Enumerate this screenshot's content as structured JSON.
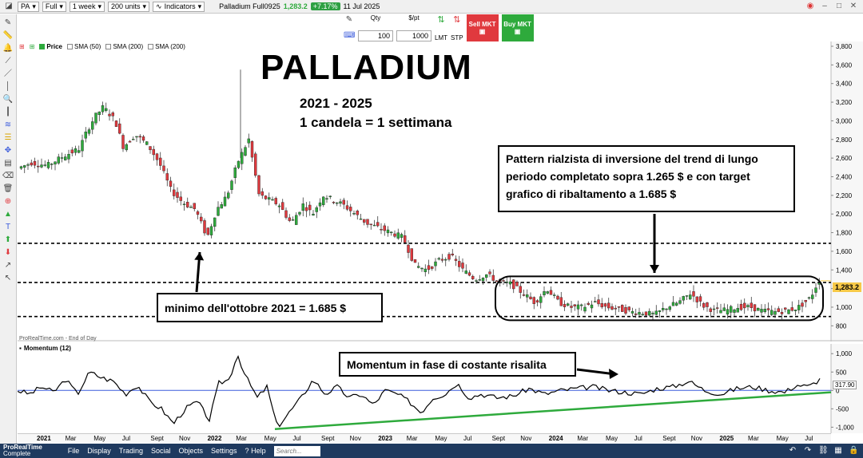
{
  "toolbar": {
    "symbol": "PA",
    "view": "Full",
    "period": "1 week",
    "units": "200 units",
    "indicators_label": "Indicators",
    "instrument": "Palladium Full0925",
    "last_price": "1,283.2",
    "change": "+7.17%",
    "date": "11 Jul 2025"
  },
  "order": {
    "qty_label": "Qty",
    "qty_value": "100",
    "pt_label": "$/pt",
    "pt_value": "1000",
    "lmt_label": "LMT",
    "stp_label": "STP",
    "sell_label": "Sell MKT",
    "buy_label": "Buy MKT"
  },
  "legend": {
    "price": "Price",
    "sma1": "SMA (50)",
    "sma2": "SMA (200)",
    "sma3": "SMA (200)"
  },
  "annotations": {
    "title": "PALLADIUM",
    "years": "2021 - 2025",
    "candle": "1 candela = 1 settimana",
    "pattern": "Pattern rialzista di inversione del trend di lungo periodo completato sopra 1.265 $ e con target grafico di ribaltamento a 1.685 $",
    "minimum": "minimo dell'ottobre 2021 = 1.685 $",
    "momentum": "Momentum in fase di costante risalita"
  },
  "price_axis": {
    "ticks": [
      "3,800",
      "3,600",
      "3,400",
      "3,200",
      "3,000",
      "2,800",
      "2,600",
      "2,400",
      "2,200",
      "2,000",
      "1,800",
      "1,600",
      "1,400",
      "1,200",
      "1,000",
      "800"
    ],
    "current_label": "1,283.2"
  },
  "momentum": {
    "title": "Momentum (12)",
    "ticks": [
      "1,000",
      "500",
      "0",
      "-500",
      "-1,000"
    ],
    "current_label": "317.90"
  },
  "source": "ProRealTime.com - End of Day",
  "xaxis": [
    "2021",
    "Mar",
    "May",
    "Jul",
    "Sept",
    "Nov",
    "2022",
    "Mar",
    "May",
    "Jul",
    "Sept",
    "Nov",
    "2023",
    "Mar",
    "May",
    "Jul",
    "Sept",
    "Nov",
    "2024",
    "Mar",
    "May",
    "Jul",
    "Sept",
    "Nov",
    "2025",
    "Mar",
    "May",
    "Jul"
  ],
  "menu": {
    "brand_1": "ProRealTime",
    "brand_2": "Complete",
    "items": [
      "File",
      "Display",
      "Trading",
      "Social",
      "Objects",
      "Settings",
      "Help"
    ],
    "search_placeholder": "Search..."
  },
  "colors": {
    "up": "#2eaa3c",
    "down": "#e0393e",
    "momentum_line": "#000000",
    "trendline": "#2eaa3c",
    "zero_line": "#3b5bdb",
    "current_price_bg": "#f7c948"
  }
}
